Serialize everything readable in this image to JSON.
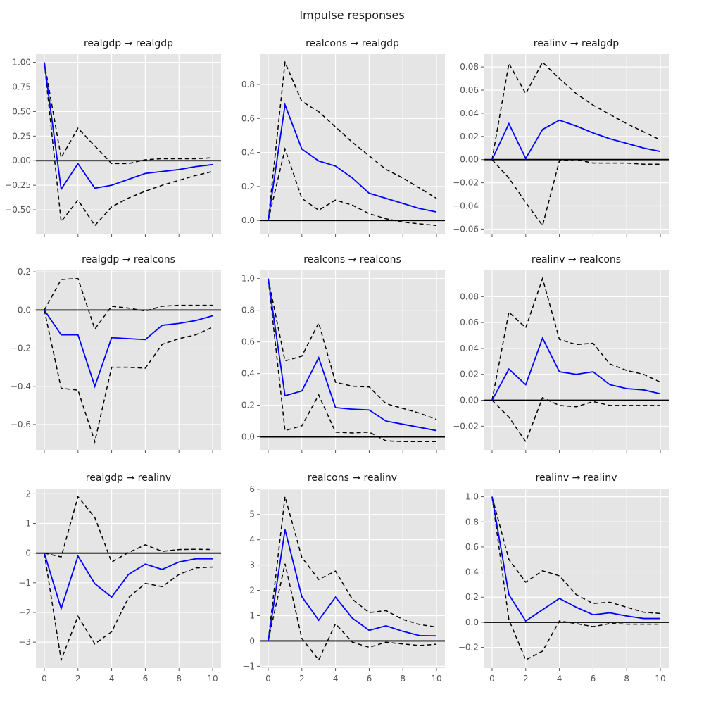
{
  "figure_title": "Impulse responses",
  "colors": {
    "irf_line": "#0000ff",
    "band_line": "#000000",
    "zero_line": "#000000",
    "plot_bg": "#e5e5e5",
    "grid": "#ffffff",
    "tick": "#555555",
    "tick_label": "#555555",
    "title_text": "#1a1a1a"
  },
  "x": [
    0,
    1,
    2,
    3,
    4,
    5,
    6,
    7,
    8,
    9,
    10
  ],
  "xlim": [
    -0.5,
    10.5
  ],
  "xticks": [
    0,
    2,
    4,
    6,
    8,
    10
  ],
  "xtick_labels": [
    "0",
    "2",
    "4",
    "6",
    "8",
    "10"
  ],
  "legend": "none",
  "grid_on": true,
  "chart_data": [
    {
      "type": "line",
      "title": "realgdp → realgdp",
      "impulse": "realgdp",
      "response": "realgdp",
      "ylim": [
        -0.743,
        1.083
      ],
      "yticks": [
        1.0,
        0.75,
        0.5,
        0.25,
        0.0,
        -0.25,
        -0.5
      ],
      "ytick_labels": [
        "1.00",
        "0.75",
        "0.50",
        "0.25",
        "0.00",
        "−0.25",
        "−0.50"
      ],
      "show_x_labels": false,
      "series": [
        {
          "name": "irf",
          "values": [
            1.0,
            -0.29,
            -0.03,
            -0.28,
            -0.25,
            -0.19,
            -0.13,
            -0.11,
            -0.09,
            -0.06,
            -0.04
          ]
        },
        {
          "name": "upper",
          "values": [
            1.0,
            0.03,
            0.33,
            0.15,
            -0.03,
            -0.03,
            0.01,
            0.02,
            0.02,
            0.02,
            0.03
          ]
        },
        {
          "name": "lower",
          "values": [
            1.0,
            -0.62,
            -0.4,
            -0.66,
            -0.47,
            -0.38,
            -0.31,
            -0.25,
            -0.2,
            -0.15,
            -0.11
          ]
        }
      ]
    },
    {
      "type": "line",
      "title": "realcons → realgdp",
      "impulse": "realcons",
      "response": "realgdp",
      "ylim": [
        -0.078,
        0.978
      ],
      "yticks": [
        0.8,
        0.6,
        0.4,
        0.2,
        0.0
      ],
      "ytick_labels": [
        "0.8",
        "0.6",
        "0.4",
        "0.2",
        "0.0"
      ],
      "show_x_labels": false,
      "series": [
        {
          "name": "irf",
          "values": [
            0.0,
            0.68,
            0.42,
            0.35,
            0.32,
            0.25,
            0.16,
            0.13,
            0.1,
            0.07,
            0.05
          ]
        },
        {
          "name": "upper",
          "values": [
            0.0,
            0.93,
            0.7,
            0.64,
            0.55,
            0.46,
            0.38,
            0.3,
            0.25,
            0.19,
            0.13
          ]
        },
        {
          "name": "lower",
          "values": [
            0.0,
            0.42,
            0.13,
            0.06,
            0.12,
            0.09,
            0.04,
            0.01,
            -0.01,
            -0.02,
            -0.03
          ]
        }
      ]
    },
    {
      "type": "line",
      "title": "realinv → realgdp",
      "impulse": "realinv",
      "response": "realgdp",
      "ylim": [
        -0.064,
        0.091
      ],
      "yticks": [
        0.08,
        0.06,
        0.04,
        0.02,
        0.0,
        -0.02,
        -0.04,
        -0.06
      ],
      "ytick_labels": [
        "0.08",
        "0.06",
        "0.04",
        "0.02",
        "0.00",
        "−0.02",
        "−0.04",
        "−0.06"
      ],
      "show_x_labels": false,
      "series": [
        {
          "name": "irf",
          "values": [
            0.0,
            0.031,
            0.001,
            0.026,
            0.034,
            0.029,
            0.023,
            0.018,
            0.014,
            0.01,
            0.007
          ]
        },
        {
          "name": "upper",
          "values": [
            0.0,
            0.083,
            0.057,
            0.084,
            0.07,
            0.057,
            0.047,
            0.039,
            0.031,
            0.024,
            0.017
          ]
        },
        {
          "name": "lower",
          "values": [
            0.0,
            -0.016,
            -0.037,
            -0.057,
            -0.001,
            0.0,
            -0.003,
            -0.003,
            -0.003,
            -0.004,
            -0.004
          ]
        }
      ]
    },
    {
      "type": "line",
      "title": "realgdp → realcons",
      "impulse": "realgdp",
      "response": "realcons",
      "ylim": [
        -0.733,
        0.208
      ],
      "yticks": [
        0.2,
        0.0,
        -0.2,
        -0.4,
        -0.6
      ],
      "ytick_labels": [
        "0.2",
        "0.0",
        "−0.2",
        "−0.4",
        "−0.6"
      ],
      "show_x_labels": false,
      "series": [
        {
          "name": "irf",
          "values": [
            0.0,
            -0.13,
            -0.13,
            -0.4,
            -0.145,
            -0.15,
            -0.155,
            -0.08,
            -0.07,
            -0.055,
            -0.03
          ]
        },
        {
          "name": "upper",
          "values": [
            0.0,
            0.16,
            0.165,
            -0.1,
            0.02,
            0.01,
            -0.005,
            0.02,
            0.025,
            0.025,
            0.025
          ]
        },
        {
          "name": "lower",
          "values": [
            0.0,
            -0.41,
            -0.42,
            -0.69,
            -0.3,
            -0.3,
            -0.305,
            -0.18,
            -0.15,
            -0.13,
            -0.09
          ]
        }
      ]
    },
    {
      "type": "line",
      "title": "realcons → realcons",
      "impulse": "realcons",
      "response": "realcons",
      "ylim": [
        -0.082,
        1.052
      ],
      "yticks": [
        1.0,
        0.8,
        0.6,
        0.4,
        0.2,
        0.0
      ],
      "ytick_labels": [
        "1.0",
        "0.8",
        "0.6",
        "0.4",
        "0.2",
        "0.0"
      ],
      "show_x_labels": false,
      "series": [
        {
          "name": "irf",
          "values": [
            1.0,
            0.26,
            0.29,
            0.5,
            0.185,
            0.175,
            0.17,
            0.1,
            0.08,
            0.06,
            0.04
          ]
        },
        {
          "name": "upper",
          "values": [
            1.0,
            0.48,
            0.51,
            0.72,
            0.345,
            0.32,
            0.315,
            0.21,
            0.18,
            0.15,
            0.11
          ]
        },
        {
          "name": "lower",
          "values": [
            1.0,
            0.04,
            0.07,
            0.265,
            0.03,
            0.025,
            0.03,
            -0.025,
            -0.03,
            -0.03,
            -0.03
          ]
        }
      ]
    },
    {
      "type": "line",
      "title": "realinv → realcons",
      "impulse": "realinv",
      "response": "realcons",
      "ylim": [
        -0.0383,
        0.1003
      ],
      "yticks": [
        0.08,
        0.06,
        0.04,
        0.02,
        0.0,
        -0.02
      ],
      "ytick_labels": [
        "0.08",
        "0.06",
        "0.04",
        "0.02",
        "0.00",
        "−0.02"
      ],
      "show_x_labels": false,
      "series": [
        {
          "name": "irf",
          "values": [
            0.0,
            0.024,
            0.012,
            0.048,
            0.022,
            0.02,
            0.022,
            0.012,
            0.009,
            0.008,
            0.005
          ]
        },
        {
          "name": "upper",
          "values": [
            0.0,
            0.068,
            0.056,
            0.094,
            0.047,
            0.043,
            0.044,
            0.028,
            0.023,
            0.02,
            0.014
          ]
        },
        {
          "name": "lower",
          "values": [
            0.0,
            -0.013,
            -0.032,
            0.002,
            -0.004,
            -0.005,
            -0.001,
            -0.004,
            -0.004,
            -0.004,
            -0.004
          ]
        }
      ]
    },
    {
      "type": "line",
      "title": "realgdp → realinv",
      "impulse": "realgdp",
      "response": "realinv",
      "ylim": [
        -3.875,
        2.175
      ],
      "yticks": [
        2,
        1,
        0,
        -1,
        -2,
        -3
      ],
      "ytick_labels": [
        "2",
        "1",
        "0",
        "−1",
        "−2",
        "−3"
      ],
      "show_x_labels": true,
      "series": [
        {
          "name": "irf",
          "values": [
            0.0,
            -1.87,
            -0.1,
            -1.03,
            -1.48,
            -0.72,
            -0.37,
            -0.55,
            -0.3,
            -0.19,
            -0.19
          ]
        },
        {
          "name": "upper",
          "values": [
            0.0,
            -0.13,
            1.9,
            1.2,
            -0.3,
            0.02,
            0.28,
            0.06,
            0.12,
            0.13,
            0.12
          ]
        },
        {
          "name": "lower",
          "values": [
            0.0,
            -3.6,
            -2.13,
            -3.06,
            -2.65,
            -1.5,
            -1.02,
            -1.13,
            -0.72,
            -0.5,
            -0.47
          ]
        }
      ]
    },
    {
      "type": "line",
      "title": "realcons → realinv",
      "impulse": "realcons",
      "response": "realinv",
      "ylim": [
        -1.0725,
        6.0225
      ],
      "yticks": [
        6,
        5,
        4,
        3,
        2,
        1,
        0,
        -1
      ],
      "ytick_labels": [
        "6",
        "5",
        "4",
        "3",
        "2",
        "1",
        "0",
        "−1"
      ],
      "show_x_labels": true,
      "series": [
        {
          "name": "irf",
          "values": [
            0.0,
            4.4,
            1.75,
            0.82,
            1.73,
            0.9,
            0.42,
            0.6,
            0.38,
            0.21,
            0.2
          ]
        },
        {
          "name": "upper",
          "values": [
            0.0,
            5.7,
            3.3,
            2.43,
            2.76,
            1.65,
            1.12,
            1.2,
            0.85,
            0.65,
            0.55
          ]
        },
        {
          "name": "lower",
          "values": [
            0.0,
            3.05,
            0.1,
            -0.75,
            0.68,
            -0.05,
            -0.25,
            -0.05,
            -0.12,
            -0.18,
            -0.13
          ]
        }
      ]
    },
    {
      "type": "line",
      "title": "realinv → realinv",
      "impulse": "realinv",
      "response": "realinv",
      "ylim": [
        -0.365,
        1.065
      ],
      "yticks": [
        1.0,
        0.8,
        0.6,
        0.4,
        0.2,
        0.0,
        -0.2
      ],
      "ytick_labels": [
        "1.0",
        "0.8",
        "0.6",
        "0.4",
        "0.2",
        "0.0",
        "−0.2"
      ],
      "show_x_labels": true,
      "series": [
        {
          "name": "irf",
          "values": [
            1.0,
            0.22,
            0.01,
            0.1,
            0.19,
            0.12,
            0.06,
            0.075,
            0.05,
            0.03,
            0.03
          ]
        },
        {
          "name": "upper",
          "values": [
            1.0,
            0.5,
            0.32,
            0.41,
            0.37,
            0.22,
            0.15,
            0.16,
            0.12,
            0.08,
            0.07
          ]
        },
        {
          "name": "lower",
          "values": [
            1.0,
            0.02,
            -0.3,
            -0.23,
            0.01,
            -0.01,
            -0.035,
            -0.01,
            -0.015,
            -0.015,
            -0.015
          ]
        }
      ]
    }
  ]
}
